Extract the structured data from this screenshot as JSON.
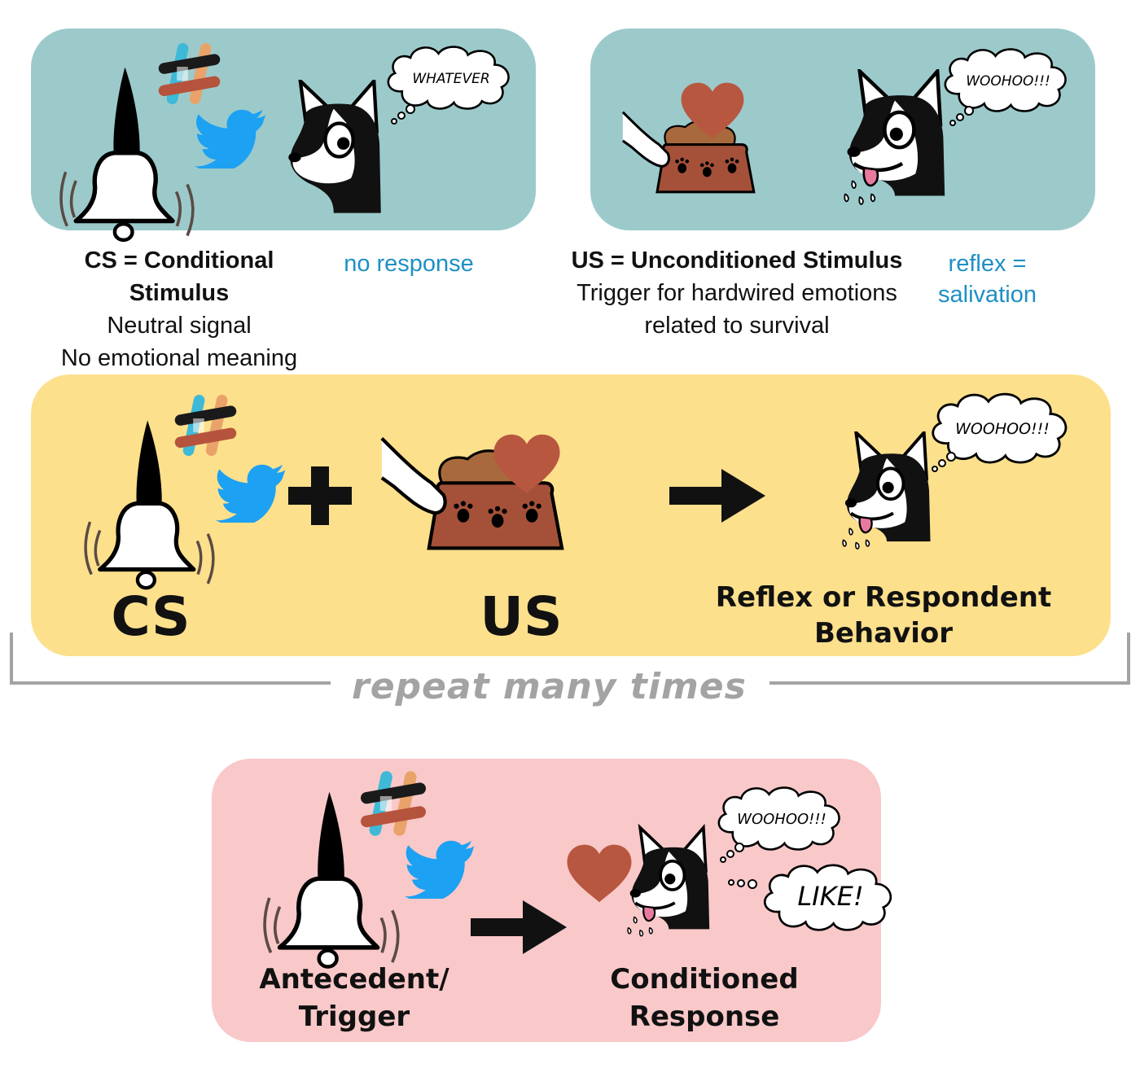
{
  "panel_cs": {
    "thought": "WHATEVER",
    "title": "CS = Conditional Stimulus",
    "line1": "Neutral signal",
    "line2": "No emotional meaning",
    "response": "no response"
  },
  "panel_us": {
    "thought": "WOOHOO!!!",
    "title": "US = Unconditioned Stimulus",
    "line1": "Trigger for hardwired emotions",
    "line2": "related to survival",
    "response_line1": "reflex =",
    "response_line2": "salivation"
  },
  "pairing": {
    "thought": "WOOHOO!!!",
    "cs_label": "CS",
    "us_label": "US",
    "result_line1": "Reflex or Respondent",
    "result_line2": "Behavior"
  },
  "repeat_label": "repeat many times",
  "conditioned": {
    "thought1": "WOOHOO!!!",
    "thought2": "LIKE!",
    "left_line1": "Antecedent/",
    "left_line2": "Trigger",
    "right_line1": "Conditioned",
    "right_line2": "Response"
  },
  "colors": {
    "teal": "#9ccacb",
    "yellow": "#fde08c",
    "pink": "#f9c8c9",
    "heart": "#b8573f",
    "bowl": "#a5513a",
    "twitter": "#1da1f2",
    "response_blue": "#1e8fc4"
  }
}
